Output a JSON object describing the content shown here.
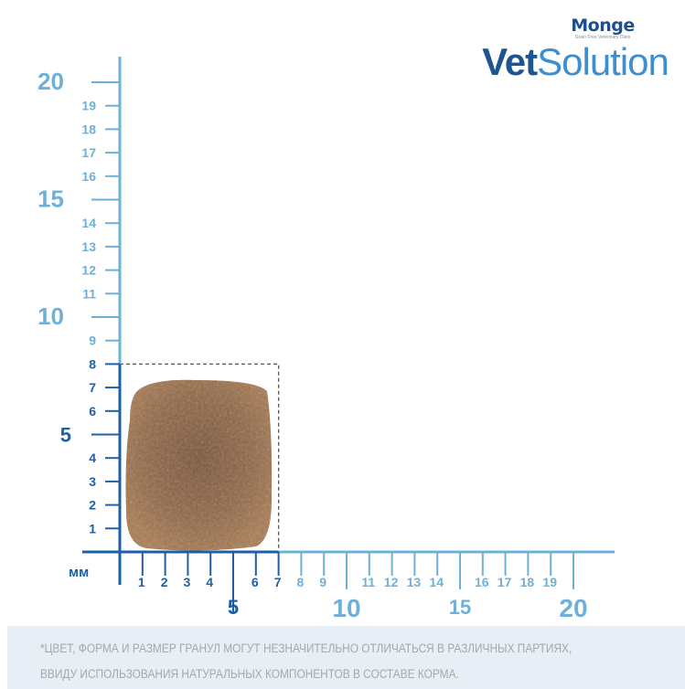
{
  "logo": {
    "brand": "Monge",
    "tagline": "Grain Free Veterinary Diets",
    "product_bold": "Vet",
    "product_light": "Solution"
  },
  "ruler": {
    "unit": "мм",
    "max": 20,
    "highlight_width_mm": 7,
    "highlight_height_mm": 8,
    "major_labels": [
      "5",
      "10",
      "15",
      "20"
    ],
    "minor_labels": [
      "1",
      "2",
      "3",
      "4",
      "6",
      "7",
      "8",
      "9",
      "11",
      "12",
      "13",
      "14",
      "16",
      "17",
      "18",
      "19"
    ],
    "colors": {
      "dark": "#1f5fa6",
      "light": "#6eb0d8",
      "kibble": "#8a5a3a"
    }
  },
  "disclaimer": {
    "line1": "*ЦВЕТ, ФОРМА И РАЗМЕР ГРАНУЛ МОГУТ НЕЗНАЧИТЕЛЬНО ОТЛИЧАТЬСЯ В РАЗЛИЧНЫХ ПАРТИЯХ,",
    "line2": "ВВИДУ ИСПОЛЬЗОВАНИЯ НАТУРАЛЬНЫХ КОМПОНЕНТОВ В СОСТАВЕ КОРМА."
  }
}
